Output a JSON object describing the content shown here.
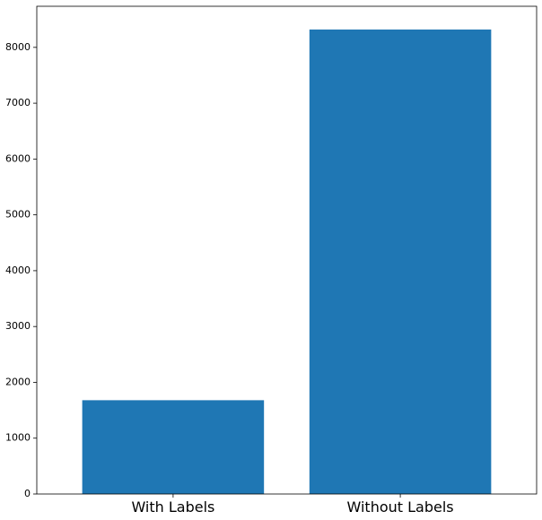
{
  "chart_data": {
    "type": "bar",
    "categories": [
      "With Labels",
      "Without Labels"
    ],
    "values": [
      1680,
      8320
    ],
    "title": "",
    "xlabel": "",
    "ylabel": "",
    "ylim": [
      0,
      8736
    ],
    "yticks": [
      0,
      1000,
      2000,
      3000,
      4000,
      5000,
      6000,
      7000,
      8000
    ],
    "grid": false,
    "bar_color": "#1f77b4",
    "axis_color": "#000000",
    "background_color": "#ffffff"
  }
}
